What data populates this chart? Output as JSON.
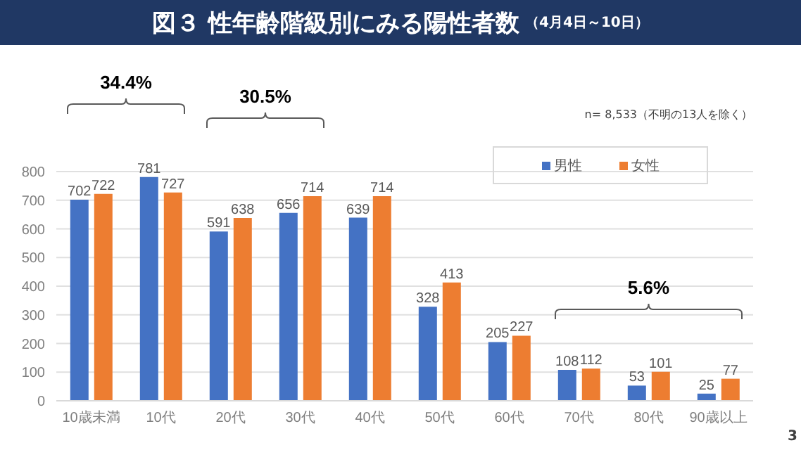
{
  "chart_data": {
    "type": "bar",
    "title": "図３ 性年齢階級別にみる陽性者数",
    "subtitle": "（4月4日～10日）",
    "categories": [
      "10歳未満",
      "10代",
      "20代",
      "30代",
      "40代",
      "50代",
      "60代",
      "70代",
      "80代",
      "90歳以上"
    ],
    "series": [
      {
        "name": "男性",
        "color": "#4472c4",
        "values": [
          702,
          781,
          591,
          656,
          639,
          328,
          205,
          108,
          53,
          25
        ]
      },
      {
        "name": "女性",
        "color": "#ed7d31",
        "values": [
          722,
          727,
          638,
          714,
          714,
          413,
          227,
          112,
          101,
          77
        ]
      }
    ],
    "ylim": [
      0,
      800
    ],
    "yticks": [
      0,
      100,
      200,
      300,
      400,
      500,
      600,
      700,
      800
    ],
    "grid": "y",
    "legend": "top right",
    "data_labels": true,
    "annotations": [
      "34.4%",
      "30.5%",
      "5.6%",
      "n= 8,533（不明の13人を除く）",
      "3"
    ]
  }
}
